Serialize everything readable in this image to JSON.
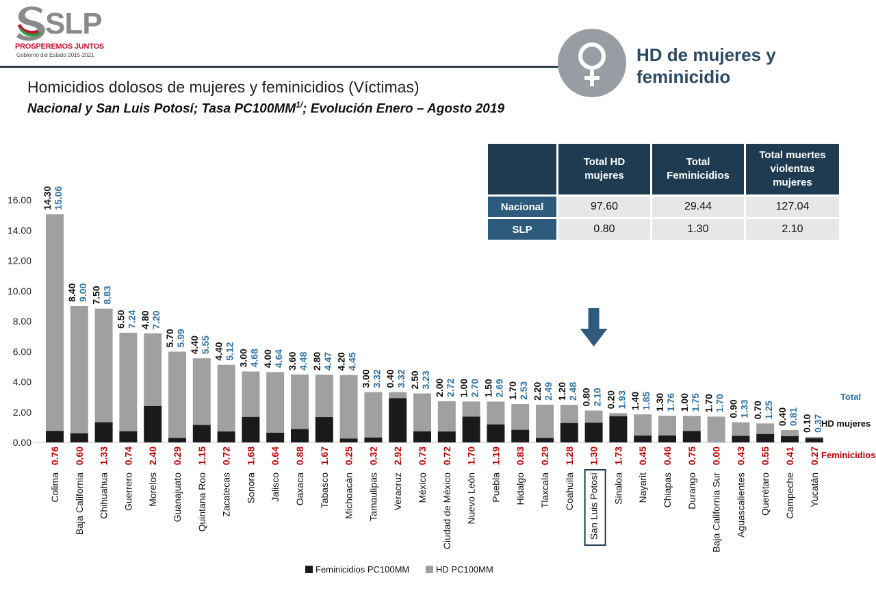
{
  "header": {
    "logo_text": "SLP",
    "logo_tagline": "PROSPEREMOS JUNTOS",
    "logo_subline": "Gobierno del Estado 2015-2021",
    "section_title": "HD de mujeres y feminicidio",
    "venus_icon": "female-symbol-icon"
  },
  "colors": {
    "feminicidios": "#1a1a1a",
    "hd": "#a0a0a0",
    "total_label": "#2f73a8",
    "fem_label": "#c00000",
    "dark_blue": "#1f3b52",
    "highlight_arrow": "#2e5a7c"
  },
  "summary_table": {
    "headers": [
      "",
      "Total HD mujeres",
      "Total Feminicidios",
      "Total muertes violentas mujeres"
    ],
    "rows": [
      {
        "label": "Nacional",
        "values": [
          "97.60",
          "29.44",
          "127.04"
        ]
      },
      {
        "label": "SLP",
        "values": [
          "0.80",
          "1.30",
          "2.10"
        ]
      }
    ]
  },
  "chart_data": {
    "type": "bar",
    "title": "Homicidios dolosos de mujeres y feminicidios (Víctimas)",
    "subtitle": "Nacional y San Luis Potosí; Tasa PC100MM",
    "subtitle_sup": "1/",
    "subtitle_tail": "; Evolución Enero – Agosto 2019",
    "ylim": [
      0,
      16
    ],
    "yticks": [
      "0.00",
      "2.00",
      "4.00",
      "6.00",
      "8.00",
      "10.00",
      "12.00",
      "14.00",
      "16.00"
    ],
    "categories": [
      "Colima",
      "Baja California",
      "Chihuahua",
      "Guerrero",
      "Morelos",
      "Guanajuato",
      "Quintana Roo",
      "Zacatecas",
      "Sonora",
      "Jalisco",
      "Oaxaca",
      "Tabasco",
      "Michoacán",
      "Tamaulipas",
      "Veracruz",
      "México",
      "Ciudad de México",
      "Nuevo León",
      "Puebla",
      "Hidalgo",
      "Tlaxcala",
      "Coahuila",
      "San Luis Potosí",
      "Sinaloa",
      "Nayarit",
      "Chiapas",
      "Durango",
      "Baja California Sur",
      "Aguascalientes",
      "Querétaro",
      "Campeche",
      "Yucatán"
    ],
    "highlight_category": "San Luis Potosí",
    "series": [
      {
        "name": "Feminicidios PC100MM",
        "values": [
          "0.76",
          "0.60",
          "1.33",
          "0.74",
          "2.40",
          "0.29",
          "1.15",
          "0.72",
          "1.68",
          "0.64",
          "0.88",
          "1.67",
          "0.25",
          "0.32",
          "2.92",
          "0.73",
          "0.72",
          "1.70",
          "1.19",
          "0.83",
          "0.29",
          "1.28",
          "1.30",
          "1.73",
          "0.45",
          "0.46",
          "0.75",
          "0.00",
          "0.43",
          "0.55",
          "0.41",
          "0.27"
        ]
      },
      {
        "name": "HD PC100MM",
        "values": [
          "14.30",
          "8.40",
          "7.50",
          "6.50",
          "4.80",
          "5.70",
          "4.40",
          "4.40",
          "3.00",
          "4.00",
          "3.60",
          "2.80",
          "4.20",
          "3.00",
          "0.40",
          "2.50",
          "2.00",
          "1.00",
          "1.50",
          "1.70",
          "2.20",
          "1.20",
          "0.80",
          "0.20",
          "1.40",
          "1.30",
          "1.00",
          "1.70",
          "0.90",
          "0.70",
          "0.40",
          "0.10"
        ]
      }
    ],
    "totals": [
      "15.06",
      "9.00",
      "8.83",
      "7.24",
      "7.20",
      "5.99",
      "5.55",
      "5.12",
      "4.68",
      "4.64",
      "4.48",
      "4.47",
      "4.45",
      "3.32",
      "3.32",
      "3.23",
      "2.72",
      "2.70",
      "2.69",
      "2.53",
      "2.49",
      "2.48",
      "2.10",
      "1.93",
      "1.85",
      "1.76",
      "1.75",
      "1.70",
      "1.33",
      "1.25",
      "0.81",
      "0.37"
    ],
    "row_labels": {
      "total": "Total",
      "hd": "HD mujeres",
      "fem": "Feminicidios"
    },
    "legend": [
      "Feminicidios PC100MM",
      "HD PC100MM"
    ]
  }
}
